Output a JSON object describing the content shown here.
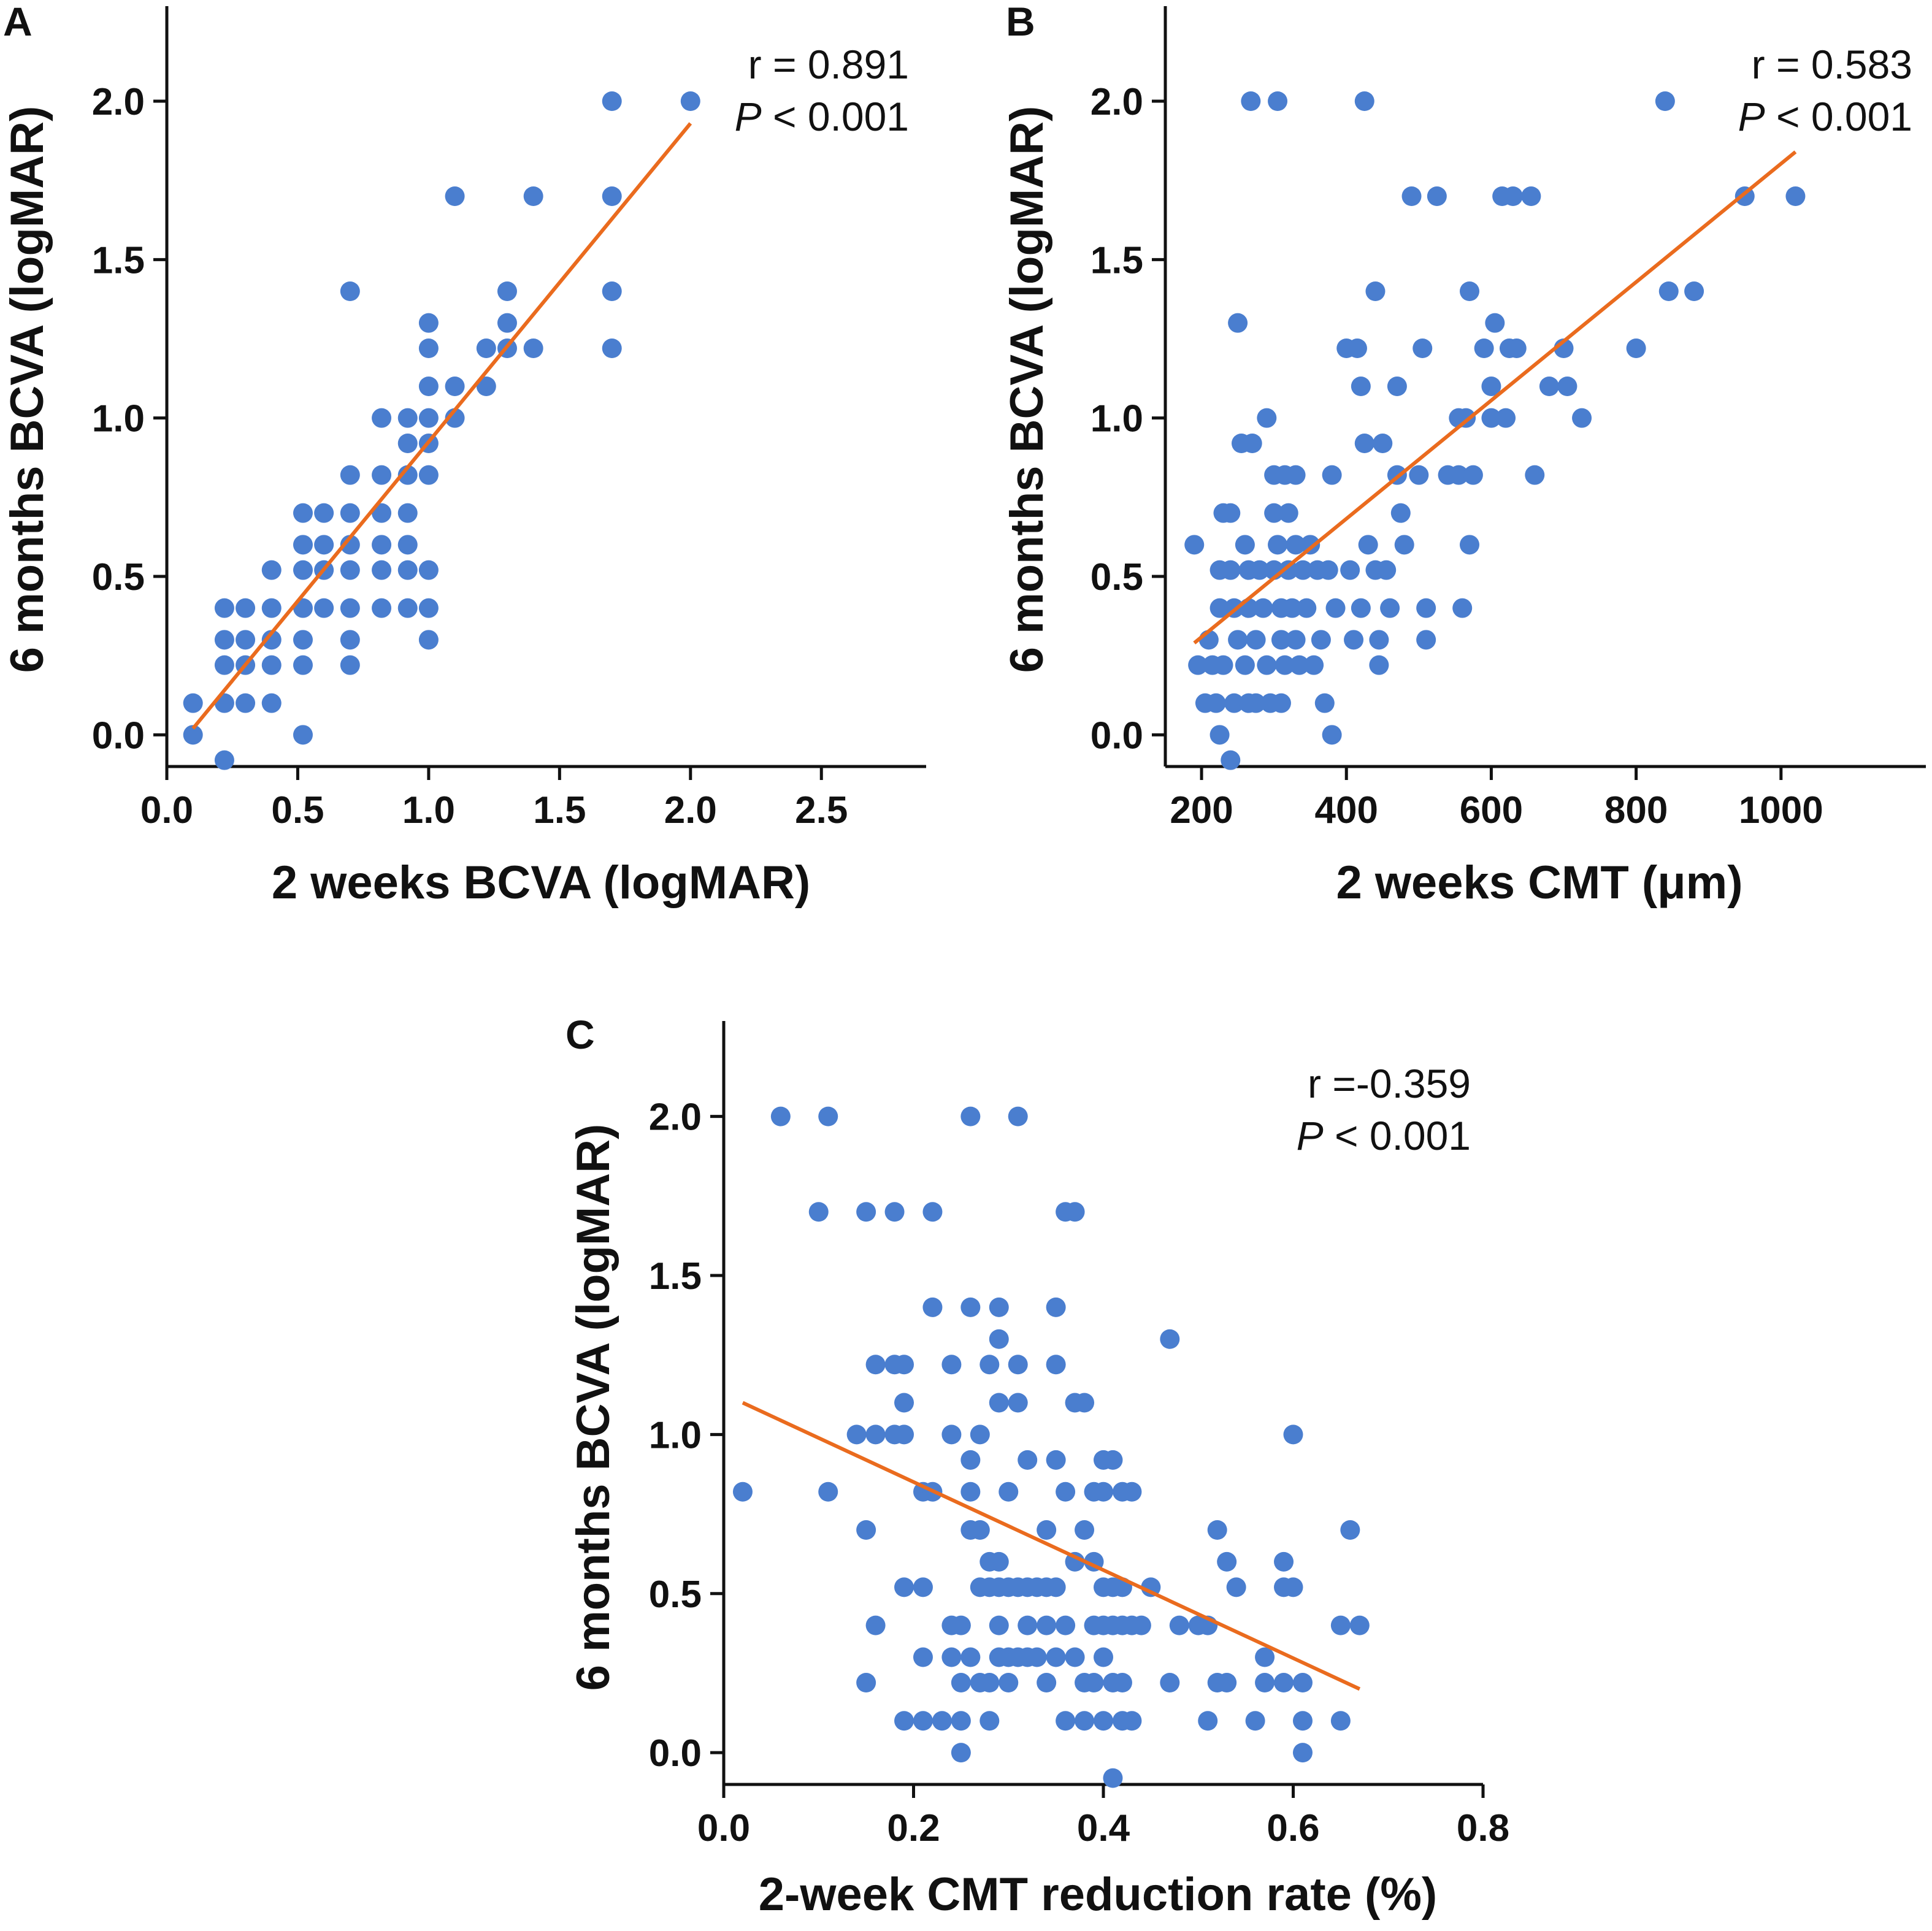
{
  "colors": {
    "points": "#4a7ecf",
    "fit_line": "#ea6b1e",
    "axis": "#111111"
  },
  "chart_data": [
    {
      "panel": "A",
      "type": "scatter",
      "xlabel": "2 weeks BCVA (logMAR)",
      "ylabel": "6 months BCVA (logMAR)",
      "xlim": [
        0.0,
        2.9
      ],
      "ylim": [
        -0.1,
        2.3
      ],
      "xticks": [
        0.0,
        0.5,
        1.0,
        1.5,
        2.0,
        2.5
      ],
      "xtick_labels": [
        "0.0",
        "0.5",
        "1.0",
        "1.5",
        "2.0",
        "2.5"
      ],
      "yticks": [
        0.0,
        0.5,
        1.0,
        1.5,
        2.0
      ],
      "ytick_labels": [
        "0.0",
        "0.5",
        "1.0",
        "1.5",
        "2.0"
      ],
      "stat_r": "r = 0.891",
      "stat_p_symbol": "P",
      "stat_p_value": " < 0.001",
      "fit_line": {
        "x": [
          0.1,
          2.0
        ],
        "y": [
          0.02,
          1.93
        ]
      },
      "points": [
        [
          0.1,
          0.1
        ],
        [
          0.1,
          0.0
        ],
        [
          0.22,
          0.4
        ],
        [
          0.22,
          0.3
        ],
        [
          0.22,
          0.22
        ],
        [
          0.22,
          0.1
        ],
        [
          0.22,
          -0.08
        ],
        [
          0.3,
          0.4
        ],
        [
          0.3,
          0.3
        ],
        [
          0.3,
          0.22
        ],
        [
          0.3,
          0.1
        ],
        [
          0.4,
          0.52
        ],
        [
          0.4,
          0.4
        ],
        [
          0.4,
          0.3
        ],
        [
          0.4,
          0.22
        ],
        [
          0.4,
          0.1
        ],
        [
          0.52,
          0.7
        ],
        [
          0.52,
          0.6
        ],
        [
          0.52,
          0.52
        ],
        [
          0.52,
          0.4
        ],
        [
          0.52,
          0.3
        ],
        [
          0.52,
          0.22
        ],
        [
          0.52,
          0.0
        ],
        [
          0.6,
          0.7
        ],
        [
          0.6,
          0.6
        ],
        [
          0.6,
          0.52
        ],
        [
          0.6,
          0.4
        ],
        [
          0.7,
          1.4
        ],
        [
          0.7,
          0.82
        ],
        [
          0.7,
          0.7
        ],
        [
          0.7,
          0.6
        ],
        [
          0.7,
          0.52
        ],
        [
          0.7,
          0.4
        ],
        [
          0.7,
          0.3
        ],
        [
          0.7,
          0.22
        ],
        [
          0.82,
          1.0
        ],
        [
          0.82,
          0.82
        ],
        [
          0.82,
          0.7
        ],
        [
          0.82,
          0.6
        ],
        [
          0.82,
          0.52
        ],
        [
          0.82,
          0.4
        ],
        [
          0.92,
          1.0
        ],
        [
          0.92,
          0.92
        ],
        [
          0.92,
          0.82
        ],
        [
          0.92,
          0.7
        ],
        [
          0.92,
          0.6
        ],
        [
          0.92,
          0.52
        ],
        [
          0.92,
          0.4
        ],
        [
          1.0,
          1.3
        ],
        [
          1.0,
          1.22
        ],
        [
          1.0,
          1.1
        ],
        [
          1.0,
          1.0
        ],
        [
          1.0,
          0.92
        ],
        [
          1.0,
          0.82
        ],
        [
          1.0,
          0.52
        ],
        [
          1.0,
          0.4
        ],
        [
          1.0,
          0.3
        ],
        [
          1.1,
          1.7
        ],
        [
          1.1,
          1.1
        ],
        [
          1.1,
          1.0
        ],
        [
          1.22,
          1.22
        ],
        [
          1.22,
          1.1
        ],
        [
          1.3,
          1.4
        ],
        [
          1.3,
          1.3
        ],
        [
          1.3,
          1.22
        ],
        [
          1.4,
          1.7
        ],
        [
          1.4,
          1.22
        ],
        [
          1.7,
          2.0
        ],
        [
          1.7,
          1.7
        ],
        [
          1.7,
          1.4
        ],
        [
          1.7,
          1.22
        ],
        [
          2.0,
          2.0
        ]
      ]
    },
    {
      "panel": "B",
      "type": "scatter",
      "xlabel": "2 weeks CMT (μm)",
      "ylabel": "6 months BCVA (logMAR)",
      "xlim": [
        150,
        1200
      ],
      "ylim": [
        -0.1,
        2.3
      ],
      "xticks": [
        200,
        400,
        600,
        800,
        1000
      ],
      "xtick_labels": [
        "200",
        "400",
        "600",
        "800",
        "1000"
      ],
      "yticks": [
        0.0,
        0.5,
        1.0,
        1.5,
        2.0
      ],
      "ytick_labels": [
        "0.0",
        "0.5",
        "1.0",
        "1.5",
        "2.0"
      ],
      "stat_r": "r = 0.583",
      "stat_p_symbol": "P",
      "stat_p_value": " < 0.001",
      "fit_line": {
        "x": [
          190,
          1020
        ],
        "y": [
          0.29,
          1.84
        ]
      },
      "points": [
        [
          190,
          0.6
        ],
        [
          195,
          0.22
        ],
        [
          205,
          0.1
        ],
        [
          210,
          0.3
        ],
        [
          215,
          0.22
        ],
        [
          220,
          0.1
        ],
        [
          225,
          0.52
        ],
        [
          225,
          0.4
        ],
        [
          230,
          0.7
        ],
        [
          230,
          0.22
        ],
        [
          225,
          0.0
        ],
        [
          240,
          -0.08
        ],
        [
          240,
          0.7
        ],
        [
          240,
          0.52
        ],
        [
          245,
          0.4
        ],
        [
          245,
          0.1
        ],
        [
          250,
          0.3
        ],
        [
          250,
          1.3
        ],
        [
          255,
          0.92
        ],
        [
          260,
          0.6
        ],
        [
          260,
          0.22
        ],
        [
          265,
          0.52
        ],
        [
          265,
          0.4
        ],
        [
          265,
          0.1
        ],
        [
          268,
          2.0
        ],
        [
          270,
          0.92
        ],
        [
          275,
          0.3
        ],
        [
          275,
          0.1
        ],
        [
          280,
          0.52
        ],
        [
          285,
          0.4
        ],
        [
          290,
          1.0
        ],
        [
          290,
          0.22
        ],
        [
          295,
          0.1
        ],
        [
          300,
          0.82
        ],
        [
          300,
          0.7
        ],
        [
          300,
          0.52
        ],
        [
          305,
          0.6
        ],
        [
          305,
          2.0
        ],
        [
          310,
          0.4
        ],
        [
          310,
          0.3
        ],
        [
          310,
          0.1
        ],
        [
          315,
          0.82
        ],
        [
          315,
          0.22
        ],
        [
          320,
          0.7
        ],
        [
          320,
          0.52
        ],
        [
          325,
          0.4
        ],
        [
          330,
          0.82
        ],
        [
          330,
          0.6
        ],
        [
          330,
          0.3
        ],
        [
          335,
          0.22
        ],
        [
          340,
          0.52
        ],
        [
          345,
          0.4
        ],
        [
          350,
          0.6
        ],
        [
          355,
          0.22
        ],
        [
          360,
          0.52
        ],
        [
          365,
          0.3
        ],
        [
          370,
          0.1
        ],
        [
          375,
          0.52
        ],
        [
          380,
          0.82
        ],
        [
          380,
          0.0
        ],
        [
          385,
          0.4
        ],
        [
          400,
          1.22
        ],
        [
          405,
          0.52
        ],
        [
          410,
          0.3
        ],
        [
          415,
          1.22
        ],
        [
          420,
          1.1
        ],
        [
          420,
          0.4
        ],
        [
          425,
          2.0
        ],
        [
          425,
          0.92
        ],
        [
          430,
          0.6
        ],
        [
          440,
          1.4
        ],
        [
          440,
          0.52
        ],
        [
          445,
          0.3
        ],
        [
          445,
          0.22
        ],
        [
          450,
          0.92
        ],
        [
          455,
          0.52
        ],
        [
          460,
          0.4
        ],
        [
          470,
          1.1
        ],
        [
          470,
          0.82
        ],
        [
          475,
          0.7
        ],
        [
          480,
          0.6
        ],
        [
          490,
          1.7
        ],
        [
          500,
          0.82
        ],
        [
          505,
          1.22
        ],
        [
          510,
          0.4
        ],
        [
          510,
          0.3
        ],
        [
          525,
          1.7
        ],
        [
          540,
          0.82
        ],
        [
          555,
          1.0
        ],
        [
          555,
          0.82
        ],
        [
          560,
          0.4
        ],
        [
          565,
          1.0
        ],
        [
          570,
          1.4
        ],
        [
          570,
          0.6
        ],
        [
          575,
          0.82
        ],
        [
          590,
          1.22
        ],
        [
          600,
          1.1
        ],
        [
          600,
          1.0
        ],
        [
          605,
          1.3
        ],
        [
          615,
          1.7
        ],
        [
          620,
          1.0
        ],
        [
          625,
          1.22
        ],
        [
          630,
          1.7
        ],
        [
          635,
          1.22
        ],
        [
          655,
          1.7
        ],
        [
          660,
          0.82
        ],
        [
          680,
          1.1
        ],
        [
          700,
          1.22
        ],
        [
          705,
          1.1
        ],
        [
          725,
          1.0
        ],
        [
          800,
          1.22
        ],
        [
          840,
          2.0
        ],
        [
          845,
          1.4
        ],
        [
          880,
          1.4
        ],
        [
          950,
          1.7
        ],
        [
          1020,
          1.7
        ]
      ]
    },
    {
      "panel": "C",
      "type": "scatter",
      "xlabel": "2-week CMT reduction rate (%)",
      "ylabel": "6 months BCVA (logMAR)",
      "xlim": [
        0.0,
        0.8
      ],
      "ylim": [
        -0.1,
        2.3
      ],
      "xticks": [
        0.0,
        0.2,
        0.4,
        0.6,
        0.8
      ],
      "xtick_labels": [
        "0.0",
        "0.2",
        "0.4",
        "0.6",
        "0.8"
      ],
      "yticks": [
        0.0,
        0.5,
        1.0,
        1.5,
        2.0
      ],
      "ytick_labels": [
        "0.0",
        "0.5",
        "1.0",
        "1.5",
        "2.0"
      ],
      "stat_r": "r =-0.359",
      "stat_p_symbol": "P",
      "stat_p_value": " < 0.001",
      "fit_line": {
        "x": [
          0.02,
          0.67
        ],
        "y": [
          1.1,
          0.2
        ]
      },
      "points": [
        [
          0.02,
          0.82
        ],
        [
          0.06,
          2.0
        ],
        [
          0.1,
          1.7
        ],
        [
          0.11,
          2.0
        ],
        [
          0.11,
          0.82
        ],
        [
          0.14,
          1.0
        ],
        [
          0.15,
          1.7
        ],
        [
          0.15,
          0.7
        ],
        [
          0.15,
          0.22
        ],
        [
          0.16,
          1.22
        ],
        [
          0.16,
          1.0
        ],
        [
          0.16,
          0.4
        ],
        [
          0.18,
          1.7
        ],
        [
          0.18,
          1.22
        ],
        [
          0.18,
          1.0
        ],
        [
          0.19,
          1.22
        ],
        [
          0.19,
          1.1
        ],
        [
          0.19,
          1.0
        ],
        [
          0.19,
          0.52
        ],
        [
          0.19,
          0.1
        ],
        [
          0.21,
          0.52
        ],
        [
          0.21,
          0.3
        ],
        [
          0.21,
          0.1
        ],
        [
          0.22,
          1.7
        ],
        [
          0.22,
          1.4
        ],
        [
          0.21,
          0.82
        ],
        [
          0.22,
          0.82
        ],
        [
          0.23,
          0.1
        ],
        [
          0.24,
          1.22
        ],
        [
          0.24,
          1.0
        ],
        [
          0.24,
          0.4
        ],
        [
          0.24,
          0.3
        ],
        [
          0.25,
          0.4
        ],
        [
          0.25,
          0.22
        ],
        [
          0.25,
          0.1
        ],
        [
          0.25,
          0.0
        ],
        [
          0.26,
          2.0
        ],
        [
          0.26,
          1.4
        ],
        [
          0.26,
          0.92
        ],
        [
          0.26,
          0.82
        ],
        [
          0.26,
          0.7
        ],
        [
          0.26,
          0.3
        ],
        [
          0.27,
          1.0
        ],
        [
          0.27,
          0.7
        ],
        [
          0.27,
          0.52
        ],
        [
          0.27,
          0.22
        ],
        [
          0.28,
          1.22
        ],
        [
          0.28,
          0.6
        ],
        [
          0.28,
          0.52
        ],
        [
          0.28,
          0.22
        ],
        [
          0.28,
          0.1
        ],
        [
          0.29,
          1.4
        ],
        [
          0.29,
          1.3
        ],
        [
          0.29,
          1.1
        ],
        [
          0.29,
          0.6
        ],
        [
          0.29,
          0.52
        ],
        [
          0.29,
          0.4
        ],
        [
          0.29,
          0.3
        ],
        [
          0.3,
          0.82
        ],
        [
          0.3,
          0.52
        ],
        [
          0.3,
          0.3
        ],
        [
          0.3,
          0.22
        ],
        [
          0.31,
          2.0
        ],
        [
          0.31,
          1.22
        ],
        [
          0.31,
          1.1
        ],
        [
          0.31,
          0.52
        ],
        [
          0.31,
          0.3
        ],
        [
          0.32,
          0.92
        ],
        [
          0.32,
          0.52
        ],
        [
          0.32,
          0.4
        ],
        [
          0.32,
          0.3
        ],
        [
          0.33,
          0.52
        ],
        [
          0.33,
          0.3
        ],
        [
          0.34,
          0.7
        ],
        [
          0.34,
          0.52
        ],
        [
          0.34,
          0.4
        ],
        [
          0.34,
          0.22
        ],
        [
          0.35,
          1.4
        ],
        [
          0.35,
          1.22
        ],
        [
          0.35,
          0.92
        ],
        [
          0.35,
          0.52
        ],
        [
          0.35,
          0.3
        ],
        [
          0.36,
          1.7
        ],
        [
          0.36,
          0.82
        ],
        [
          0.36,
          0.4
        ],
        [
          0.36,
          0.1
        ],
        [
          0.37,
          1.7
        ],
        [
          0.37,
          1.1
        ],
        [
          0.37,
          0.6
        ],
        [
          0.37,
          0.3
        ],
        [
          0.38,
          1.1
        ],
        [
          0.38,
          0.7
        ],
        [
          0.38,
          0.22
        ],
        [
          0.38,
          0.1
        ],
        [
          0.39,
          0.82
        ],
        [
          0.39,
          0.6
        ],
        [
          0.39,
          0.4
        ],
        [
          0.39,
          0.22
        ],
        [
          0.4,
          0.92
        ],
        [
          0.4,
          0.82
        ],
        [
          0.4,
          0.52
        ],
        [
          0.4,
          0.4
        ],
        [
          0.4,
          0.3
        ],
        [
          0.4,
          0.1
        ],
        [
          0.41,
          0.92
        ],
        [
          0.41,
          0.52
        ],
        [
          0.41,
          0.4
        ],
        [
          0.41,
          0.22
        ],
        [
          0.41,
          -0.08
        ],
        [
          0.42,
          0.82
        ],
        [
          0.42,
          0.52
        ],
        [
          0.42,
          0.4
        ],
        [
          0.42,
          0.22
        ],
        [
          0.42,
          0.1
        ],
        [
          0.43,
          0.82
        ],
        [
          0.43,
          0.4
        ],
        [
          0.43,
          0.1
        ],
        [
          0.44,
          0.4
        ],
        [
          0.45,
          0.52
        ],
        [
          0.47,
          1.3
        ],
        [
          0.47,
          0.22
        ],
        [
          0.48,
          0.4
        ],
        [
          0.5,
          0.4
        ],
        [
          0.51,
          0.4
        ],
        [
          0.51,
          0.1
        ],
        [
          0.52,
          0.7
        ],
        [
          0.52,
          0.22
        ],
        [
          0.53,
          0.6
        ],
        [
          0.53,
          0.22
        ],
        [
          0.54,
          0.52
        ],
        [
          0.56,
          0.1
        ],
        [
          0.57,
          0.3
        ],
        [
          0.57,
          0.22
        ],
        [
          0.59,
          0.6
        ],
        [
          0.59,
          0.52
        ],
        [
          0.59,
          0.22
        ],
        [
          0.6,
          1.0
        ],
        [
          0.6,
          0.52
        ],
        [
          0.61,
          0.22
        ],
        [
          0.61,
          0.1
        ],
        [
          0.61,
          0.0
        ],
        [
          0.65,
          0.4
        ],
        [
          0.65,
          0.1
        ],
        [
          0.66,
          0.7
        ],
        [
          0.67,
          0.4
        ]
      ]
    }
  ]
}
